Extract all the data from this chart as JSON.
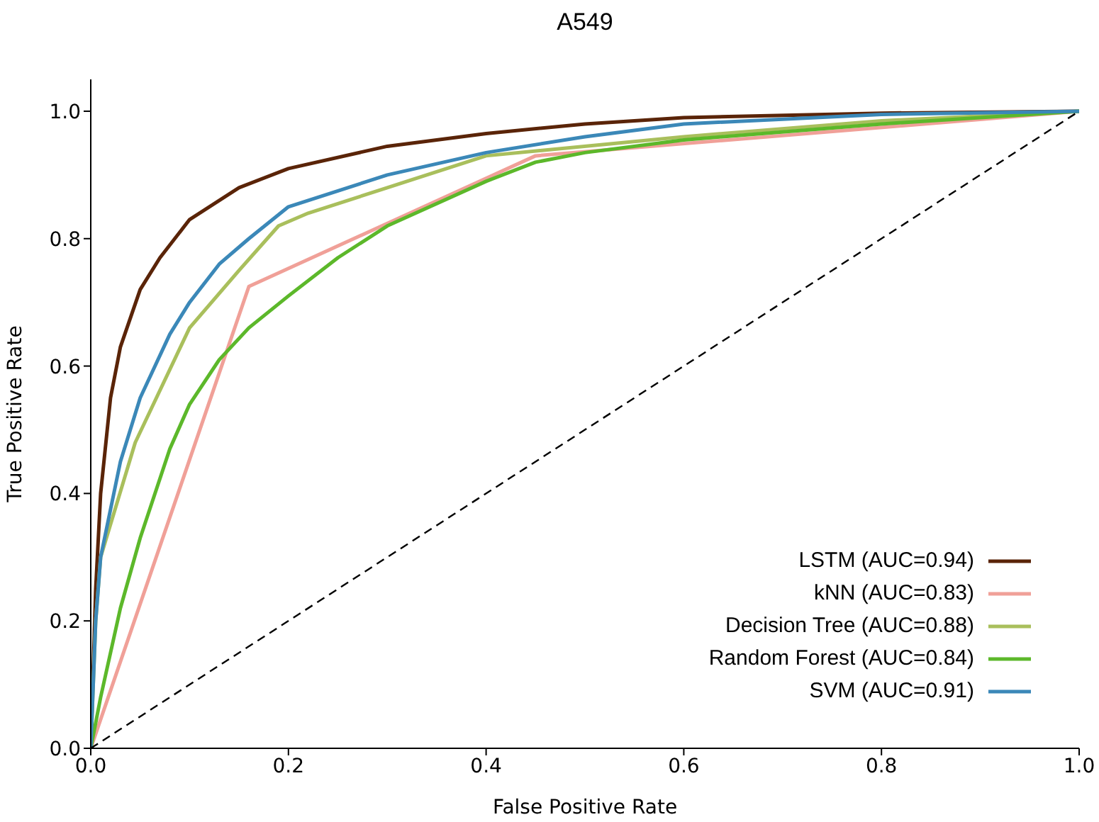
{
  "chart_data": {
    "type": "line",
    "title": "A549",
    "xlabel": "False Positive Rate",
    "ylabel": "True Positive Rate",
    "xlim": [
      0,
      1
    ],
    "ylim": [
      0,
      1.05
    ],
    "xticks": [
      {
        "value": 0,
        "label": "0.0"
      },
      {
        "value": 0.2,
        "label": "0.2"
      },
      {
        "value": 0.4,
        "label": "0.4"
      },
      {
        "value": 0.6,
        "label": "0.6"
      },
      {
        "value": 0.8,
        "label": "0.8"
      },
      {
        "value": 1,
        "label": "1.0"
      }
    ],
    "yticks": [
      {
        "value": 0,
        "label": "0.0"
      },
      {
        "value": 0.2,
        "label": "0.2"
      },
      {
        "value": 0.4,
        "label": "0.4"
      },
      {
        "value": 0.6,
        "label": "0.6"
      },
      {
        "value": 0.8,
        "label": "0.8"
      },
      {
        "value": 1,
        "label": "1.0"
      }
    ],
    "legend": "bottom right",
    "marker": "none",
    "series": [
      {
        "name": "LSTM (AUC=0.94)",
        "color": "#5a2408",
        "x": [
          0,
          0.005,
          0.01,
          0.02,
          0.03,
          0.05,
          0.07,
          0.1,
          0.15,
          0.2,
          0.3,
          0.4,
          0.5,
          0.6,
          0.8,
          1
        ],
        "values": [
          0,
          0.25,
          0.4,
          0.55,
          0.63,
          0.72,
          0.77,
          0.83,
          0.88,
          0.91,
          0.945,
          0.965,
          0.98,
          0.99,
          0.997,
          1
        ]
      },
      {
        "name": "kNN (AUC=0.83)",
        "color": "#f0a098",
        "x": [
          0,
          0.16,
          0.45,
          1
        ],
        "values": [
          0,
          0.725,
          0.93,
          1
        ]
      },
      {
        "name": "Decision Tree (AUC=0.88)",
        "color": "#a9bf5c",
        "x": [
          0,
          0.005,
          0.01,
          0.045,
          0.1,
          0.15,
          0.19,
          0.22,
          0.3,
          0.4,
          0.6,
          0.8,
          1
        ],
        "values": [
          0,
          0.2,
          0.3,
          0.48,
          0.66,
          0.75,
          0.82,
          0.84,
          0.88,
          0.93,
          0.96,
          0.985,
          1
        ]
      },
      {
        "name": "Random Forest (AUC=0.84)",
        "color": "#5cb82a",
        "x": [
          0,
          0.01,
          0.03,
          0.05,
          0.08,
          0.1,
          0.13,
          0.16,
          0.2,
          0.25,
          0.3,
          0.4,
          0.45,
          0.5,
          0.6,
          0.8,
          1
        ],
        "values": [
          0,
          0.08,
          0.22,
          0.33,
          0.47,
          0.54,
          0.61,
          0.66,
          0.71,
          0.77,
          0.82,
          0.89,
          0.92,
          0.935,
          0.955,
          0.98,
          1
        ]
      },
      {
        "name": "SVM (AUC=0.91)",
        "color": "#3b88b8",
        "x": [
          0,
          0.005,
          0.01,
          0.03,
          0.05,
          0.08,
          0.1,
          0.13,
          0.16,
          0.2,
          0.3,
          0.4,
          0.5,
          0.6,
          0.8,
          1
        ],
        "values": [
          0,
          0.2,
          0.3,
          0.45,
          0.55,
          0.65,
          0.7,
          0.76,
          0.8,
          0.85,
          0.9,
          0.935,
          0.96,
          0.98,
          0.995,
          1
        ]
      },
      {
        "color": "#000000",
        "line_style": "dashed",
        "x": [
          0,
          1
        ],
        "values": [
          0,
          1
        ]
      }
    ]
  }
}
